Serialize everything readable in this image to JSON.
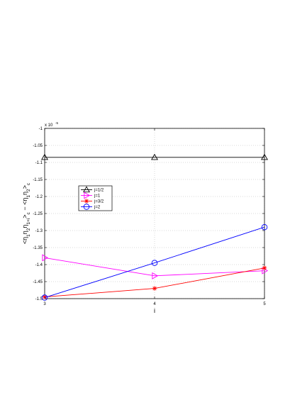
{
  "chart_data": {
    "type": "line",
    "x": [
      3,
      4,
      5
    ],
    "x_ticks": [
      "3",
      "4",
      "5"
    ],
    "xlim": [
      3,
      5
    ],
    "ylim": [
      -1.5,
      -1.0
    ],
    "y_ticks": [
      "-1",
      "-1.05",
      "-1.1",
      "-1.15",
      "-1.2",
      "-1.25",
      "-1.3",
      "-1.35",
      "-1.4",
      "-1.45",
      "-1.5"
    ],
    "y_tick_values": [
      -1.0,
      -1.05,
      -1.1,
      -1.15,
      -1.2,
      -1.25,
      -1.3,
      -1.35,
      -1.4,
      -1.45,
      -1.5
    ],
    "y_scale_label": "x 10",
    "y_scale_exp": "-5",
    "xlabel": "i",
    "ylabel": "<η1η2η1+i>c − <η1η2>c",
    "grid": true,
    "legend_position": "center-left",
    "series": [
      {
        "name": "j=1/2",
        "values": [
          -1.085,
          -1.085,
          -1.085
        ],
        "color": "#000000",
        "marker": "triangle-up"
      },
      {
        "name": "j=1",
        "values": [
          -1.38,
          -1.433,
          -1.418
        ],
        "color": "#ff00ff",
        "marker": "triangle-right"
      },
      {
        "name": "j=3/2",
        "values": [
          -1.495,
          -1.47,
          -1.41
        ],
        "color": "#ff0000",
        "marker": "asterisk"
      },
      {
        "name": "j=2",
        "values": [
          -1.497,
          -1.395,
          -1.29
        ],
        "color": "#0000ff",
        "marker": "circle"
      }
    ]
  }
}
